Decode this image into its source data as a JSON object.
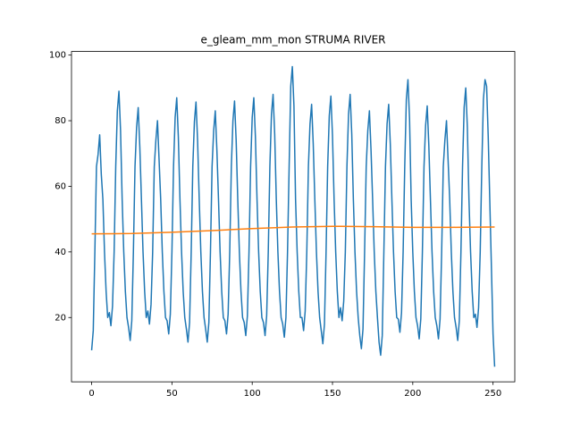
{
  "chart_data": {
    "type": "line",
    "title": "e_gleam_mm_mon STRUMA RIVER",
    "x": [
      0,
      1,
      2,
      3,
      4,
      5,
      6,
      7,
      8,
      9,
      10,
      11,
      12,
      13,
      14,
      15,
      16,
      17,
      18,
      19,
      20,
      21,
      22,
      23,
      24,
      25,
      26,
      27,
      28,
      29,
      30,
      31,
      32,
      33,
      34,
      35,
      36,
      37,
      38,
      39,
      40,
      41,
      42,
      43,
      44,
      45,
      46,
      47,
      48,
      49,
      50,
      51,
      52,
      53,
      54,
      55,
      56,
      57,
      58,
      59,
      60,
      61,
      62,
      63,
      64,
      65,
      66,
      67,
      68,
      69,
      70,
      71,
      72,
      73,
      74,
      75,
      76,
      77,
      78,
      79,
      80,
      81,
      82,
      83,
      84,
      85,
      86,
      87,
      88,
      89,
      90,
      91,
      92,
      93,
      94,
      95,
      96,
      97,
      98,
      99,
      100,
      101,
      102,
      103,
      104,
      105,
      106,
      107,
      108,
      109,
      110,
      111,
      112,
      113,
      114,
      115,
      116,
      117,
      118,
      119,
      120,
      121,
      122,
      123,
      124,
      125,
      126,
      127,
      128,
      129,
      130,
      131,
      132,
      133,
      134,
      135,
      136,
      137,
      138,
      139,
      140,
      141,
      142,
      143,
      144,
      145,
      146,
      147,
      148,
      149,
      150,
      151,
      152,
      153,
      154,
      155,
      156,
      157,
      158,
      159,
      160,
      161,
      162,
      163,
      164,
      165,
      166,
      167,
      168,
      169,
      170,
      171,
      172,
      173,
      174,
      175,
      176,
      177,
      178,
      179,
      180,
      181,
      182,
      183,
      184,
      185,
      186,
      187,
      188,
      189,
      190,
      191,
      192,
      193,
      194,
      195,
      196,
      197,
      198,
      199,
      200,
      201,
      202,
      203,
      204,
      205,
      206,
      207,
      208,
      209,
      210,
      211,
      212,
      213,
      214,
      215,
      216,
      217,
      218,
      219,
      220,
      221,
      222,
      223,
      224,
      225,
      226,
      227,
      228,
      229,
      230,
      231,
      232,
      233,
      234,
      235,
      236,
      237,
      238,
      239,
      240,
      241,
      242,
      243,
      244,
      245,
      246,
      247,
      248,
      249,
      250,
      251
    ],
    "series": [
      {
        "color": "#1f77b4",
        "values": [
          10,
          16,
          40,
          66,
          69.7,
          75.7,
          63.7,
          56,
          40,
          28,
          20,
          21.5,
          17.5,
          23.5,
          40,
          66,
          83,
          89,
          77,
          56,
          40,
          28,
          20,
          17,
          13,
          19,
          40,
          66,
          78,
          84,
          72,
          56,
          40,
          28,
          20,
          22,
          18,
          24,
          40,
          66,
          74,
          80,
          68,
          56,
          40,
          28,
          20,
          19,
          15,
          21,
          40,
          66,
          81,
          87,
          75,
          56,
          40,
          28,
          20,
          16.5,
          12.5,
          18.5,
          40,
          66,
          79.7,
          85.7,
          73.7,
          56,
          40,
          28,
          20,
          16.5,
          12.5,
          18.5,
          40,
          66,
          77,
          83,
          71,
          56,
          40,
          28,
          20,
          19,
          15,
          21,
          40,
          66,
          80,
          86,
          74,
          56,
          40,
          28,
          20,
          18.5,
          14.5,
          20.5,
          40,
          66,
          81,
          87,
          75,
          56,
          40,
          28,
          20,
          18.5,
          14.5,
          20.5,
          40,
          66,
          82,
          88,
          76,
          56,
          40,
          28,
          20,
          18,
          14,
          20,
          40,
          66,
          90.5,
          96.5,
          84.5,
          56,
          40,
          28,
          20,
          20,
          16,
          22,
          40,
          66,
          79,
          85,
          73,
          56,
          40,
          28,
          20,
          16,
          12,
          18,
          40,
          66,
          81.5,
          87.5,
          75.5,
          56,
          40,
          28,
          20,
          23,
          19,
          25,
          40,
          66,
          82,
          88,
          76,
          56,
          40,
          28,
          20,
          14.5,
          10.5,
          16.5,
          40,
          66,
          77,
          83,
          71,
          56,
          40,
          28,
          20,
          12.5,
          8.5,
          14.5,
          40,
          66,
          79,
          85,
          73,
          56,
          40,
          28,
          20,
          19.5,
          15.5,
          21.5,
          40,
          66,
          86.5,
          92.5,
          80.5,
          56,
          40,
          28,
          20,
          17.5,
          13.5,
          19.5,
          40,
          66,
          78.5,
          84.5,
          72.5,
          56,
          40,
          28,
          20,
          17.5,
          13.5,
          19.5,
          40,
          66,
          74,
          80,
          68,
          56,
          40,
          28,
          20,
          17,
          13,
          19,
          40,
          66,
          84,
          90,
          78,
          56,
          40,
          28,
          20,
          21,
          17,
          23,
          40,
          66,
          86.5,
          92.5,
          90.5,
          75,
          55,
          35,
          15,
          5
        ]
      },
      {
        "color": "#ff7f0e",
        "x": [
          0,
          25,
          50,
          75,
          100,
          125,
          150,
          175,
          200,
          225,
          251
        ],
        "values": [
          45.5,
          45.6,
          46,
          46.5,
          47.1,
          47.6,
          47.8,
          47.7,
          47.5,
          47.5,
          47.6
        ]
      }
    ],
    "xlim": [
      -12.55,
      263.55
    ],
    "xticks": [
      0,
      50,
      100,
      150,
      200,
      250
    ],
    "ylim": [
      0.4,
      101.1
    ],
    "yticks": [
      20,
      40,
      60,
      80,
      100
    ],
    "grid": false
  }
}
